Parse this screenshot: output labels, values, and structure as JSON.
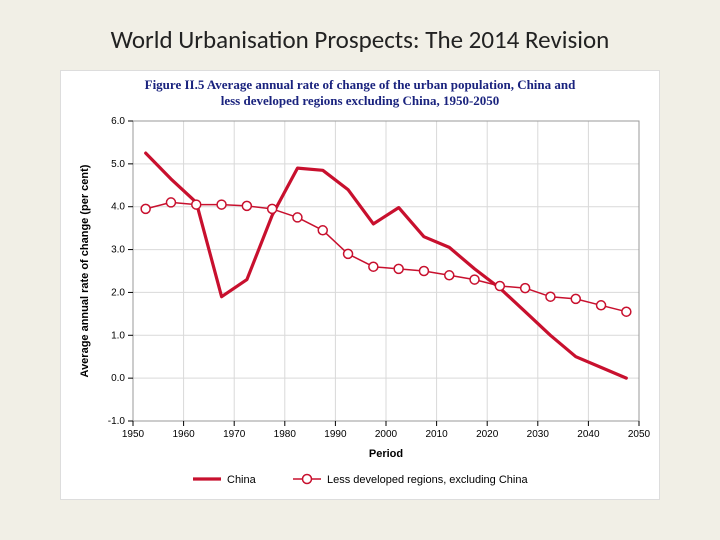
{
  "slide_title": "World Urbanisation Prospects: The 2014 Revision",
  "chart": {
    "type": "line",
    "title_line1": "Figure II.5 Average annual rate of change of the urban population, China and",
    "title_line2": "less developed regions excluding China, 1950-2050",
    "title_fontsize": 13,
    "title_color": "#1a1a7a",
    "xlabel": "Period",
    "ylabel": "Average annual rate of change (per cent)",
    "x": [
      1952.5,
      1957.5,
      1962.5,
      1967.5,
      1972.5,
      1977.5,
      1982.5,
      1987.5,
      1992.5,
      1997.5,
      2002.5,
      2007.5,
      2012.5,
      2017.5,
      2022.5,
      2027.5,
      2032.5,
      2037.5,
      2042.5,
      2047.5
    ],
    "series": [
      {
        "name": "China",
        "y": [
          5.25,
          4.65,
          4.1,
          1.9,
          2.3,
          3.8,
          4.9,
          4.85,
          4.4,
          3.6,
          3.98,
          3.3,
          3.05,
          2.55,
          2.1,
          1.55,
          1.0,
          0.5,
          0.25,
          0.0
        ],
        "color": "#c8102e",
        "line_width": 3.2,
        "marker": "none"
      },
      {
        "name": "Less developed regions, excluding China",
        "y": [
          3.95,
          4.1,
          4.05,
          4.05,
          4.02,
          3.95,
          3.75,
          3.45,
          2.9,
          2.6,
          2.55,
          2.5,
          2.4,
          2.3,
          2.15,
          2.1,
          1.9,
          1.85,
          1.7,
          1.55
        ],
        "color": "#c8102e",
        "line_width": 1.5,
        "marker": "circle",
        "marker_fill": "#ffffff",
        "marker_size": 4.5
      }
    ],
    "xlim": [
      1950,
      2050
    ],
    "ylim": [
      -1.0,
      6.0
    ],
    "xticks": [
      1950,
      1960,
      1970,
      1980,
      1990,
      2000,
      2010,
      2020,
      2030,
      2040,
      2050
    ],
    "yticks": [
      -1.0,
      0.0,
      1.0,
      2.0,
      3.0,
      4.0,
      5.0,
      6.0
    ],
    "ytick_labels": [
      "-1.0",
      "0.0",
      "1.0",
      "2.0",
      "3.0",
      "4.0",
      "5.0",
      "6.0"
    ],
    "grid_color": "#d9d9d9",
    "axis_color": "#000000",
    "background_color": "#ffffff",
    "label_fontsize": 11,
    "tick_fontsize": 10,
    "legend": {
      "china": "China",
      "ldr": "Less developed regions, excluding China"
    }
  }
}
